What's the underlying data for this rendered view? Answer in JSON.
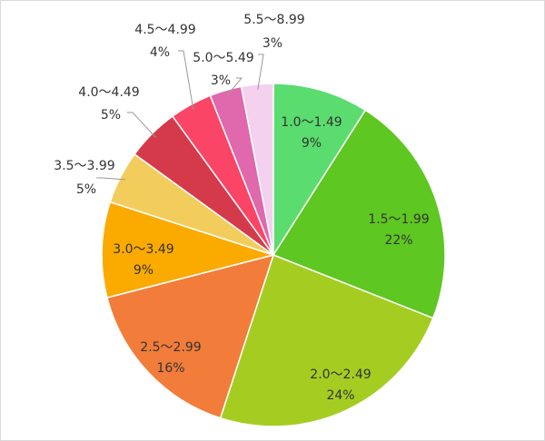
{
  "chart_data": {
    "type": "pie",
    "title": "",
    "legend": "none",
    "start_angle_deg": 0,
    "direction": "clockwise",
    "slices": [
      {
        "label": "1.0～1.49",
        "value": 9,
        "value_label": "9%",
        "color": "#5bdc6e"
      },
      {
        "label": "1.5～1.99",
        "value": 22,
        "value_label": "22%",
        "color": "#5ec722"
      },
      {
        "label": "2.0～2.49",
        "value": 24,
        "value_label": "24%",
        "color": "#a5cd21"
      },
      {
        "label": "2.5～2.99",
        "value": 16,
        "value_label": "16%",
        "color": "#f27c39"
      },
      {
        "label": "3.0～3.49",
        "value": 9,
        "value_label": "9%",
        "color": "#fbaa00"
      },
      {
        "label": "3.5～3.99",
        "value": 5,
        "value_label": "5%",
        "color": "#f2cd5c"
      },
      {
        "label": "4.0～4.49",
        "value": 5,
        "value_label": "5%",
        "color": "#d53a4b"
      },
      {
        "label": "4.5～4.99",
        "value": 4,
        "value_label": "4%",
        "color": "#fb4566"
      },
      {
        "label": "5.0～5.49",
        "value": 3,
        "value_label": "3%",
        "color": "#e068ac"
      },
      {
        "label": "5.5～8.99",
        "value": 3,
        "value_label": "3%",
        "color": "#f4d1ef"
      }
    ]
  }
}
